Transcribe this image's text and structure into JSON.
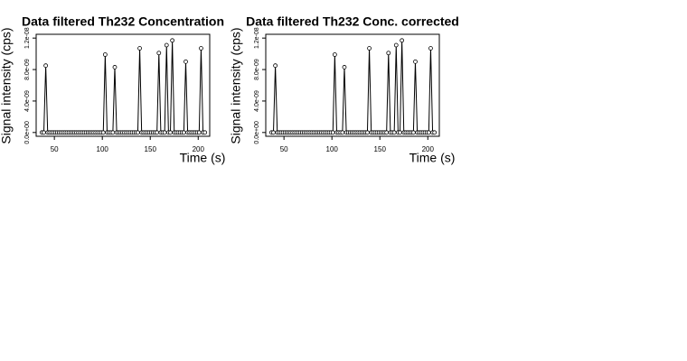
{
  "chart_data": [
    {
      "type": "line",
      "title": "Data filtered Th232 Concentration",
      "x_label": "Time (s)",
      "y_label": "Signal intensity (cps)",
      "x": [
        37,
        39,
        41,
        43,
        45,
        47,
        49,
        51,
        53,
        55,
        57,
        59,
        61,
        63,
        65,
        67,
        69,
        71,
        73,
        75,
        77,
        79,
        81,
        83,
        85,
        87,
        89,
        91,
        93,
        95,
        97,
        99,
        101,
        103,
        105,
        107,
        109,
        111,
        113,
        115,
        117,
        119,
        121,
        123,
        125,
        127,
        129,
        131,
        133,
        135,
        137,
        139,
        141,
        143,
        145,
        147,
        149,
        151,
        153,
        155,
        157,
        159,
        161,
        163,
        165,
        167,
        169,
        171,
        173,
        175,
        177,
        179,
        181,
        183,
        185,
        187,
        189,
        191,
        193,
        195,
        197,
        199,
        201,
        203,
        205,
        207
      ],
      "series": [
        {
          "name": "Th232",
          "color": "#000000",
          "values": [
            0,
            0,
            8.5e-09,
            0,
            0,
            0,
            0,
            0,
            0,
            0,
            0,
            0,
            0,
            0,
            0,
            0,
            0,
            0,
            0,
            0,
            0,
            0,
            0,
            0,
            0,
            0,
            0,
            0,
            0,
            0,
            0,
            0,
            0,
            9.9e-09,
            0,
            0,
            0,
            0,
            8.3e-09,
            0,
            0,
            0,
            0,
            0,
            0,
            0,
            0,
            0,
            0,
            0,
            0,
            1.07e-08,
            0,
            0,
            0,
            0,
            0,
            0,
            0,
            0,
            0,
            1.01e-08,
            0,
            0,
            0,
            1.11e-08,
            0,
            0,
            1.17e-08,
            0,
            0,
            0,
            0,
            0,
            0,
            9e-09,
            0,
            0,
            0,
            0,
            0,
            0,
            0,
            1.07e-08,
            0,
            0
          ]
        }
      ],
      "xlim": [
        31,
        212
      ],
      "xticks": [
        50,
        100,
        150,
        200
      ],
      "ylim": [
        -4.8e-10,
        1.248e-08
      ],
      "yticks": [
        {
          "value": 0,
          "label": "0.0e+00"
        },
        {
          "value": 4e-09,
          "label": "4.0e-09"
        },
        {
          "value": 8e-09,
          "label": "8.0e-09"
        },
        {
          "value": 1.2e-08,
          "label": "1.2e-08"
        }
      ]
    },
    {
      "type": "line",
      "title": "Data filtered Th232 Conc. corrected",
      "x_label": "Time (s)",
      "y_label": "Signal intensity (cps)",
      "x": [
        37,
        39,
        41,
        43,
        45,
        47,
        49,
        51,
        53,
        55,
        57,
        59,
        61,
        63,
        65,
        67,
        69,
        71,
        73,
        75,
        77,
        79,
        81,
        83,
        85,
        87,
        89,
        91,
        93,
        95,
        97,
        99,
        101,
        103,
        105,
        107,
        109,
        111,
        113,
        115,
        117,
        119,
        121,
        123,
        125,
        127,
        129,
        131,
        133,
        135,
        137,
        139,
        141,
        143,
        145,
        147,
        149,
        151,
        153,
        155,
        157,
        159,
        161,
        163,
        165,
        167,
        169,
        171,
        173,
        175,
        177,
        179,
        181,
        183,
        185,
        187,
        189,
        191,
        193,
        195,
        197,
        199,
        201,
        203,
        205,
        207
      ],
      "series": [
        {
          "name": "Th232",
          "color": "#000000",
          "values": [
            0,
            0,
            8.5e-09,
            0,
            0,
            0,
            0,
            0,
            0,
            0,
            0,
            0,
            0,
            0,
            0,
            0,
            0,
            0,
            0,
            0,
            0,
            0,
            0,
            0,
            0,
            0,
            0,
            0,
            0,
            0,
            0,
            0,
            0,
            9.9e-09,
            0,
            0,
            0,
            0,
            8.3e-09,
            0,
            0,
            0,
            0,
            0,
            0,
            0,
            0,
            0,
            0,
            0,
            0,
            1.07e-08,
            0,
            0,
            0,
            0,
            0,
            0,
            0,
            0,
            0,
            1.01e-08,
            0,
            0,
            0,
            1.11e-08,
            0,
            0,
            1.17e-08,
            0,
            0,
            0,
            0,
            0,
            0,
            9e-09,
            0,
            0,
            0,
            0,
            0,
            0,
            0,
            1.07e-08,
            0,
            0
          ]
        }
      ],
      "xlim": [
        31,
        212
      ],
      "xticks": [
        50,
        100,
        150,
        200
      ],
      "ylim": [
        -4.8e-10,
        1.248e-08
      ],
      "yticks": [
        {
          "value": 0,
          "label": "0.0e+00"
        },
        {
          "value": 4e-09,
          "label": "4.0e-09"
        },
        {
          "value": 8e-09,
          "label": "8.0e-09"
        },
        {
          "value": 1.2e-08,
          "label": "1.2e-08"
        }
      ]
    }
  ]
}
